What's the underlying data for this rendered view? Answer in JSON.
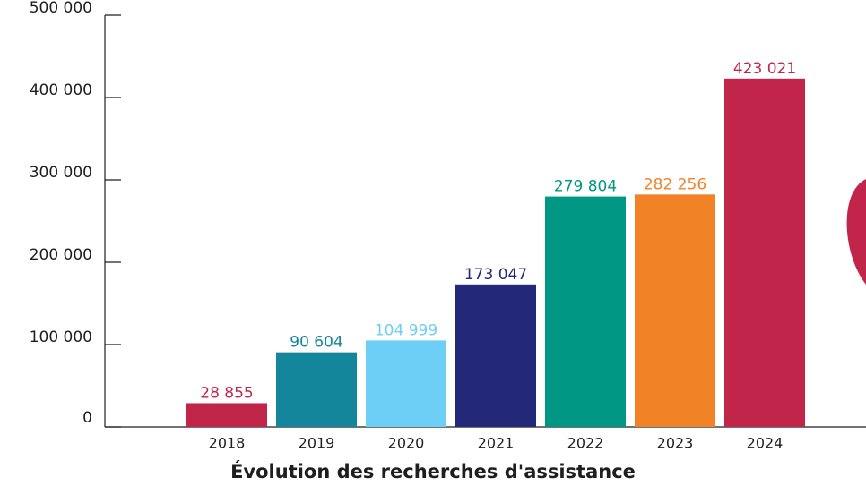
{
  "chart_data": {
    "type": "bar",
    "title": "Évolution des recherches d'assistance",
    "categories": [
      "2018",
      "2019",
      "2020",
      "2021",
      "2022",
      "2023",
      "2024"
    ],
    "values": [
      28855,
      90604,
      104999,
      173047,
      279804,
      282256,
      423021
    ],
    "value_labels": [
      "28 855",
      "90 604",
      "104 999",
      "173 047",
      "279 804",
      "282 256",
      "423 021"
    ],
    "colors": [
      "#c1264a",
      "#14869c",
      "#6dcff6",
      "#232878",
      "#009784",
      "#f28226",
      "#c1264a"
    ],
    "ylim": [
      0,
      500000
    ],
    "yticks": [
      0,
      {
        "value": 100000,
        "label": "100 000"
      },
      {
        "value": 200000,
        "label": "200 000"
      },
      {
        "value": 300000,
        "label": "300 000"
      },
      {
        "value": 400000,
        "label": "400 000"
      },
      {
        "value": 500000,
        "label": "500 000"
      }
    ]
  }
}
